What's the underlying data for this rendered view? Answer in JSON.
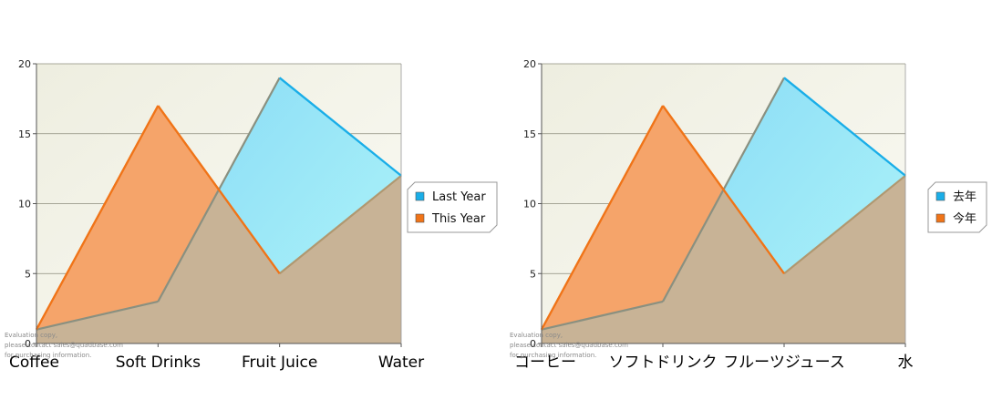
{
  "colors": {
    "last_year_line": "#1aaee8",
    "last_year_fill_top": "#7dd3f5",
    "last_year_fill_bottom": "#a8f0f8",
    "this_year_line": "#f07418",
    "this_year_fill": "#f5a46a",
    "overlap_fill": "#c4b49a",
    "plot_bg_top": "#eeeee0",
    "plot_bg_bottom": "#fafaf4",
    "grid": "#8c8c7c"
  },
  "watermark": {
    "line1": "Evaluation copy,",
    "line2": "please contact sales@quadbase.com",
    "line3": "for purchasing information."
  },
  "chart_data": [
    {
      "type": "area",
      "categories": [
        "Coffee",
        "Soft Drinks",
        "Fruit Juice",
        "Water"
      ],
      "series": [
        {
          "name": "Last Year",
          "values": [
            1,
            3,
            19,
            12
          ]
        },
        {
          "name": "This Year",
          "values": [
            1,
            17,
            5,
            12
          ]
        }
      ],
      "ylim": [
        0,
        20
      ],
      "yticks": [
        "0",
        "5",
        "10",
        "15",
        "20"
      ],
      "legend_position": "right",
      "grid": true
    },
    {
      "type": "area",
      "categories": [
        "コーヒー",
        "ソフトドリンク",
        "フルーツジュース",
        "水"
      ],
      "series": [
        {
          "name": "去年",
          "values": [
            1,
            3,
            19,
            12
          ]
        },
        {
          "name": "今年",
          "values": [
            1,
            17,
            5,
            12
          ]
        }
      ],
      "ylim": [
        0,
        20
      ],
      "yticks": [
        "0",
        "5",
        "10",
        "15",
        "20"
      ],
      "legend_position": "right",
      "grid": true
    }
  ]
}
